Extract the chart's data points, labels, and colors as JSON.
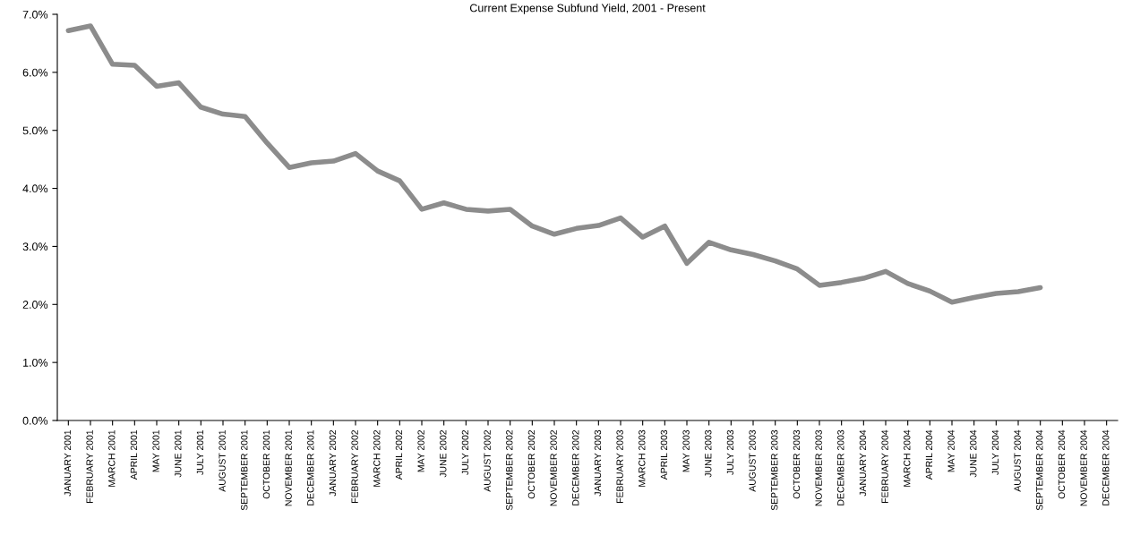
{
  "chart_data": {
    "type": "line",
    "title": "Current Expense Subfund Yield, 2001 - Present",
    "categories": [
      "JANUARY 2001",
      "FEBRUARY 2001",
      "MARCH 2001",
      "APRIL 2001",
      "MAY 2001",
      "JUNE 2001",
      "JULY 2001",
      "AUGUST 2001",
      "SEPTEMBER 2001",
      "OCTOBER 2001",
      "NOVEMBER 2001",
      "DECEMBER 2001",
      "JANUARY 2002",
      "FEBRUARY 2002",
      "MARCH 2002",
      "APRIL 2002",
      "MAY 2002",
      "JUNE 2002",
      "JULY 2002",
      "AUGUST 2002",
      "SEPTEMBER 2002",
      "OCTOBER 2002",
      "NOVEMBER 2002",
      "DECEMBER 2002",
      "JANUARY 2003",
      "FEBRUARY 2003",
      "MARCH 2003",
      "APRIL 2003",
      "MAY 2003",
      "JUNE 2003",
      "JULY 2003",
      "AUGUST 2003",
      "SEPTEMBER 2003",
      "OCTOBER 2003",
      "NOVEMBER 2003",
      "DECEMBER 2003",
      "JANUARY 2004",
      "FEBRUARY 2004",
      "MARCH 2004",
      "APRIL 2004",
      "MAY 2004",
      "JUNE 2004",
      "JULY 2004",
      "AUGUST 2004",
      "SEPTEMBER 2004",
      "OCTOBER 2004",
      "NOVEMBER 2004",
      "DECEMBER 2004"
    ],
    "series": [
      {
        "color": "#8c8c8c",
        "values": [
          6.72,
          6.8,
          6.14,
          6.12,
          5.76,
          5.82,
          5.4,
          5.28,
          5.24,
          4.78,
          4.36,
          4.44,
          4.47,
          4.6,
          4.3,
          4.13,
          3.64,
          3.75,
          3.64,
          3.61,
          3.64,
          3.35,
          3.21,
          3.31,
          3.36,
          3.49,
          3.16,
          3.35,
          2.71,
          3.07,
          2.94,
          2.86,
          2.75,
          2.61,
          2.33,
          2.38,
          2.45,
          2.57,
          2.36,
          2.23,
          2.04,
          2.12,
          2.19,
          2.22,
          2.29,
          null,
          null,
          null
        ]
      }
    ],
    "ylim": [
      0,
      7
    ],
    "yticks": [
      {
        "value": 0,
        "label": "0.0%"
      },
      {
        "value": 1,
        "label": "1.0%"
      },
      {
        "value": 2,
        "label": "2.0%"
      },
      {
        "value": 3,
        "label": "3.0%"
      },
      {
        "value": 4,
        "label": "4.0%"
      },
      {
        "value": 5,
        "label": "5.0%"
      },
      {
        "value": 6,
        "label": "6.0%"
      },
      {
        "value": 7,
        "label": "7.0%"
      }
    ],
    "grid": false,
    "legend": false,
    "marker": "none",
    "line_style": "solid"
  }
}
